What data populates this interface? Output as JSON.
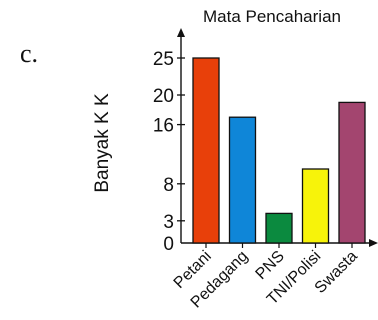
{
  "part_label": "c.",
  "chart_data": {
    "type": "bar",
    "title": "Mata Pencaharian",
    "ylabel": "Banyak K K",
    "xlabel": "",
    "categories": [
      "Petani",
      "Pedagang",
      "PNS",
      "TNI/Polisi",
      "Swasta"
    ],
    "values": [
      25,
      17,
      4,
      10,
      19
    ],
    "colors": [
      "#e8400a",
      "#0f86d8",
      "#0b8a3f",
      "#f7f30a",
      "#a3456f"
    ],
    "yticks": [
      0,
      3,
      8,
      16,
      20,
      25
    ],
    "ylim": [
      0,
      28
    ],
    "grid": false
  }
}
